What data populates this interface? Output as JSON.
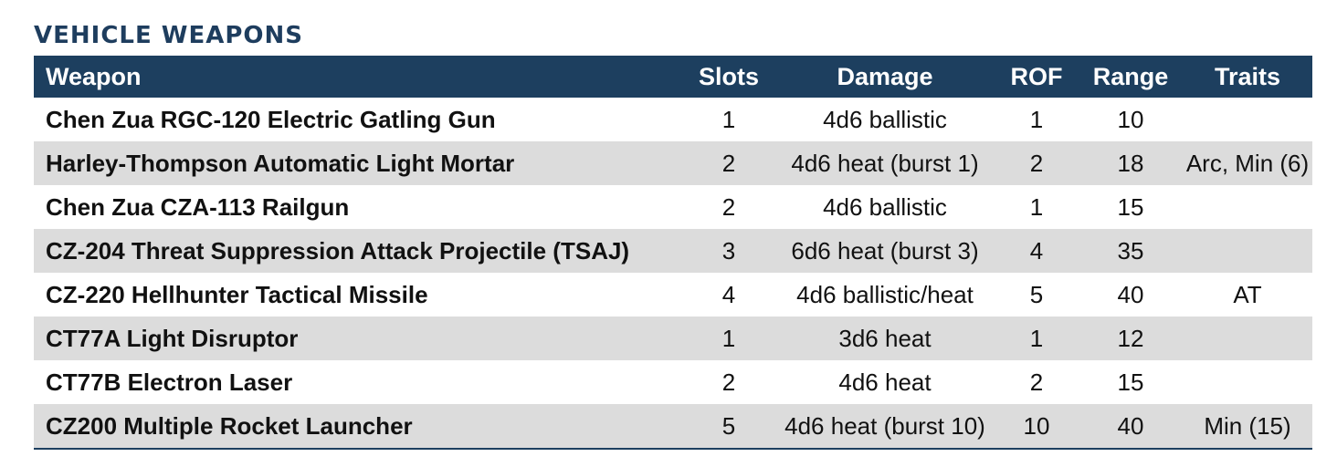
{
  "title": "VEHICLE WEAPONS",
  "table": {
    "headers": {
      "weapon": "Weapon",
      "slots": "Slots",
      "damage": "Damage",
      "rof": "ROF",
      "range": "Range",
      "traits": "Traits"
    },
    "rows": [
      {
        "weapon": "Chen Zua RGC-120 Electric Gatling Gun",
        "slots": "1",
        "damage": "4d6 ballistic",
        "rof": "1",
        "range": "10",
        "traits": ""
      },
      {
        "weapon": "Harley-Thompson Automatic Light Mortar",
        "slots": "2",
        "damage": "4d6 heat (burst 1)",
        "rof": "2",
        "range": "18",
        "traits": "Arc, Min (6)"
      },
      {
        "weapon": "Chen Zua CZA-113 Railgun",
        "slots": "2",
        "damage": "4d6 ballistic",
        "rof": "1",
        "range": "15",
        "traits": ""
      },
      {
        "weapon": "CZ-204 Threat Suppression Attack Projectile (TSAJ)",
        "slots": "3",
        "damage": "6d6 heat (burst 3)",
        "rof": "4",
        "range": "35",
        "traits": ""
      },
      {
        "weapon": "CZ-220 Hellhunter Tactical Missile",
        "slots": "4",
        "damage": "4d6 ballistic/heat",
        "rof": "5",
        "range": "40",
        "traits": "AT"
      },
      {
        "weapon": "CT77A Light Disruptor",
        "slots": "1",
        "damage": "3d6 heat",
        "rof": "1",
        "range": "12",
        "traits": ""
      },
      {
        "weapon": "CT77B Electron Laser",
        "slots": "2",
        "damage": "4d6 heat",
        "rof": "2",
        "range": "15",
        "traits": ""
      },
      {
        "weapon": "CZ200 Multiple Rocket Launcher",
        "slots": "5",
        "damage": "4d6 heat (burst 10)",
        "rof": "10",
        "range": "40",
        "traits": "Min (15)"
      }
    ]
  },
  "colors": {
    "header_bg": "#1d3f5f",
    "title_text": "#1e3d5e",
    "stripe": "#dcdcdc"
  }
}
